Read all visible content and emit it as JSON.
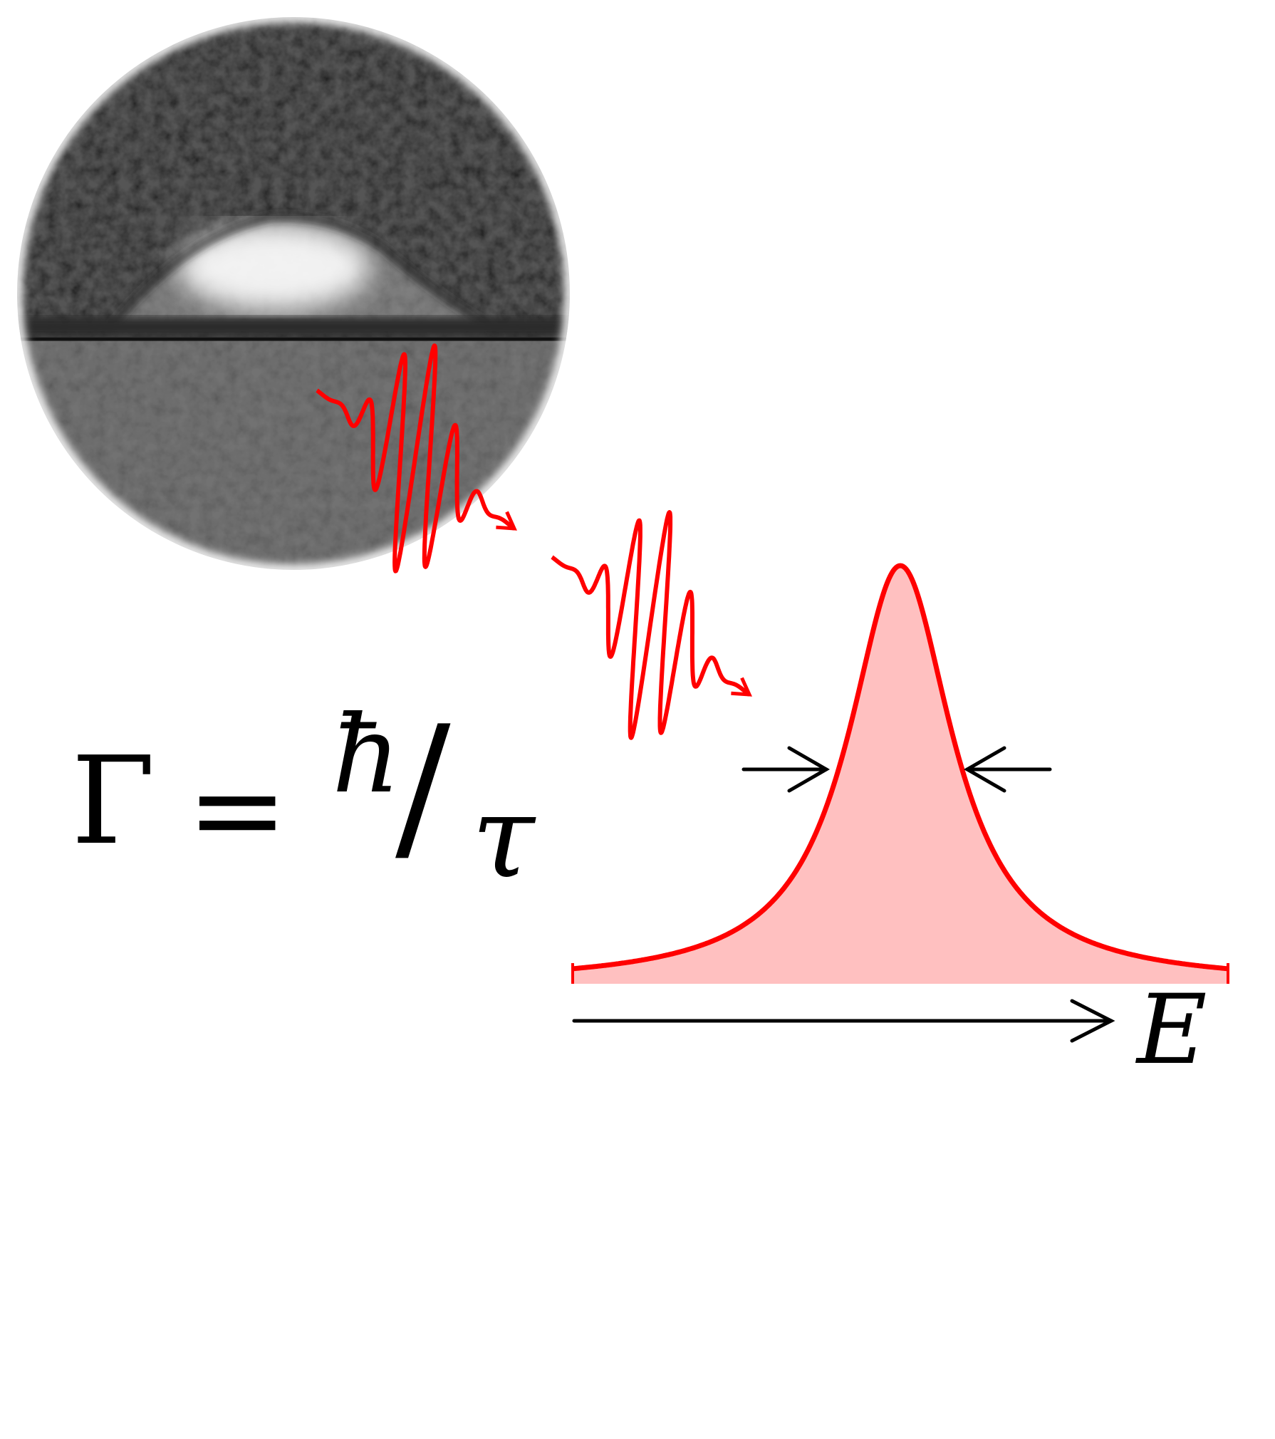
{
  "formula": {
    "lhs": "Γ",
    "equals": "=",
    "numerator": "ħ",
    "slash": "/",
    "denominator": "τ"
  },
  "axis": {
    "label": "E"
  },
  "colors": {
    "wave": "#ff0000",
    "peak_line": "#ff0000",
    "peak_fill": "#ffc0c0",
    "arrows": "#000000"
  },
  "icons": {
    "photo": "droplet-micrograph",
    "wave": "photon-wave-packet",
    "width_markers": "inward-arrows"
  }
}
